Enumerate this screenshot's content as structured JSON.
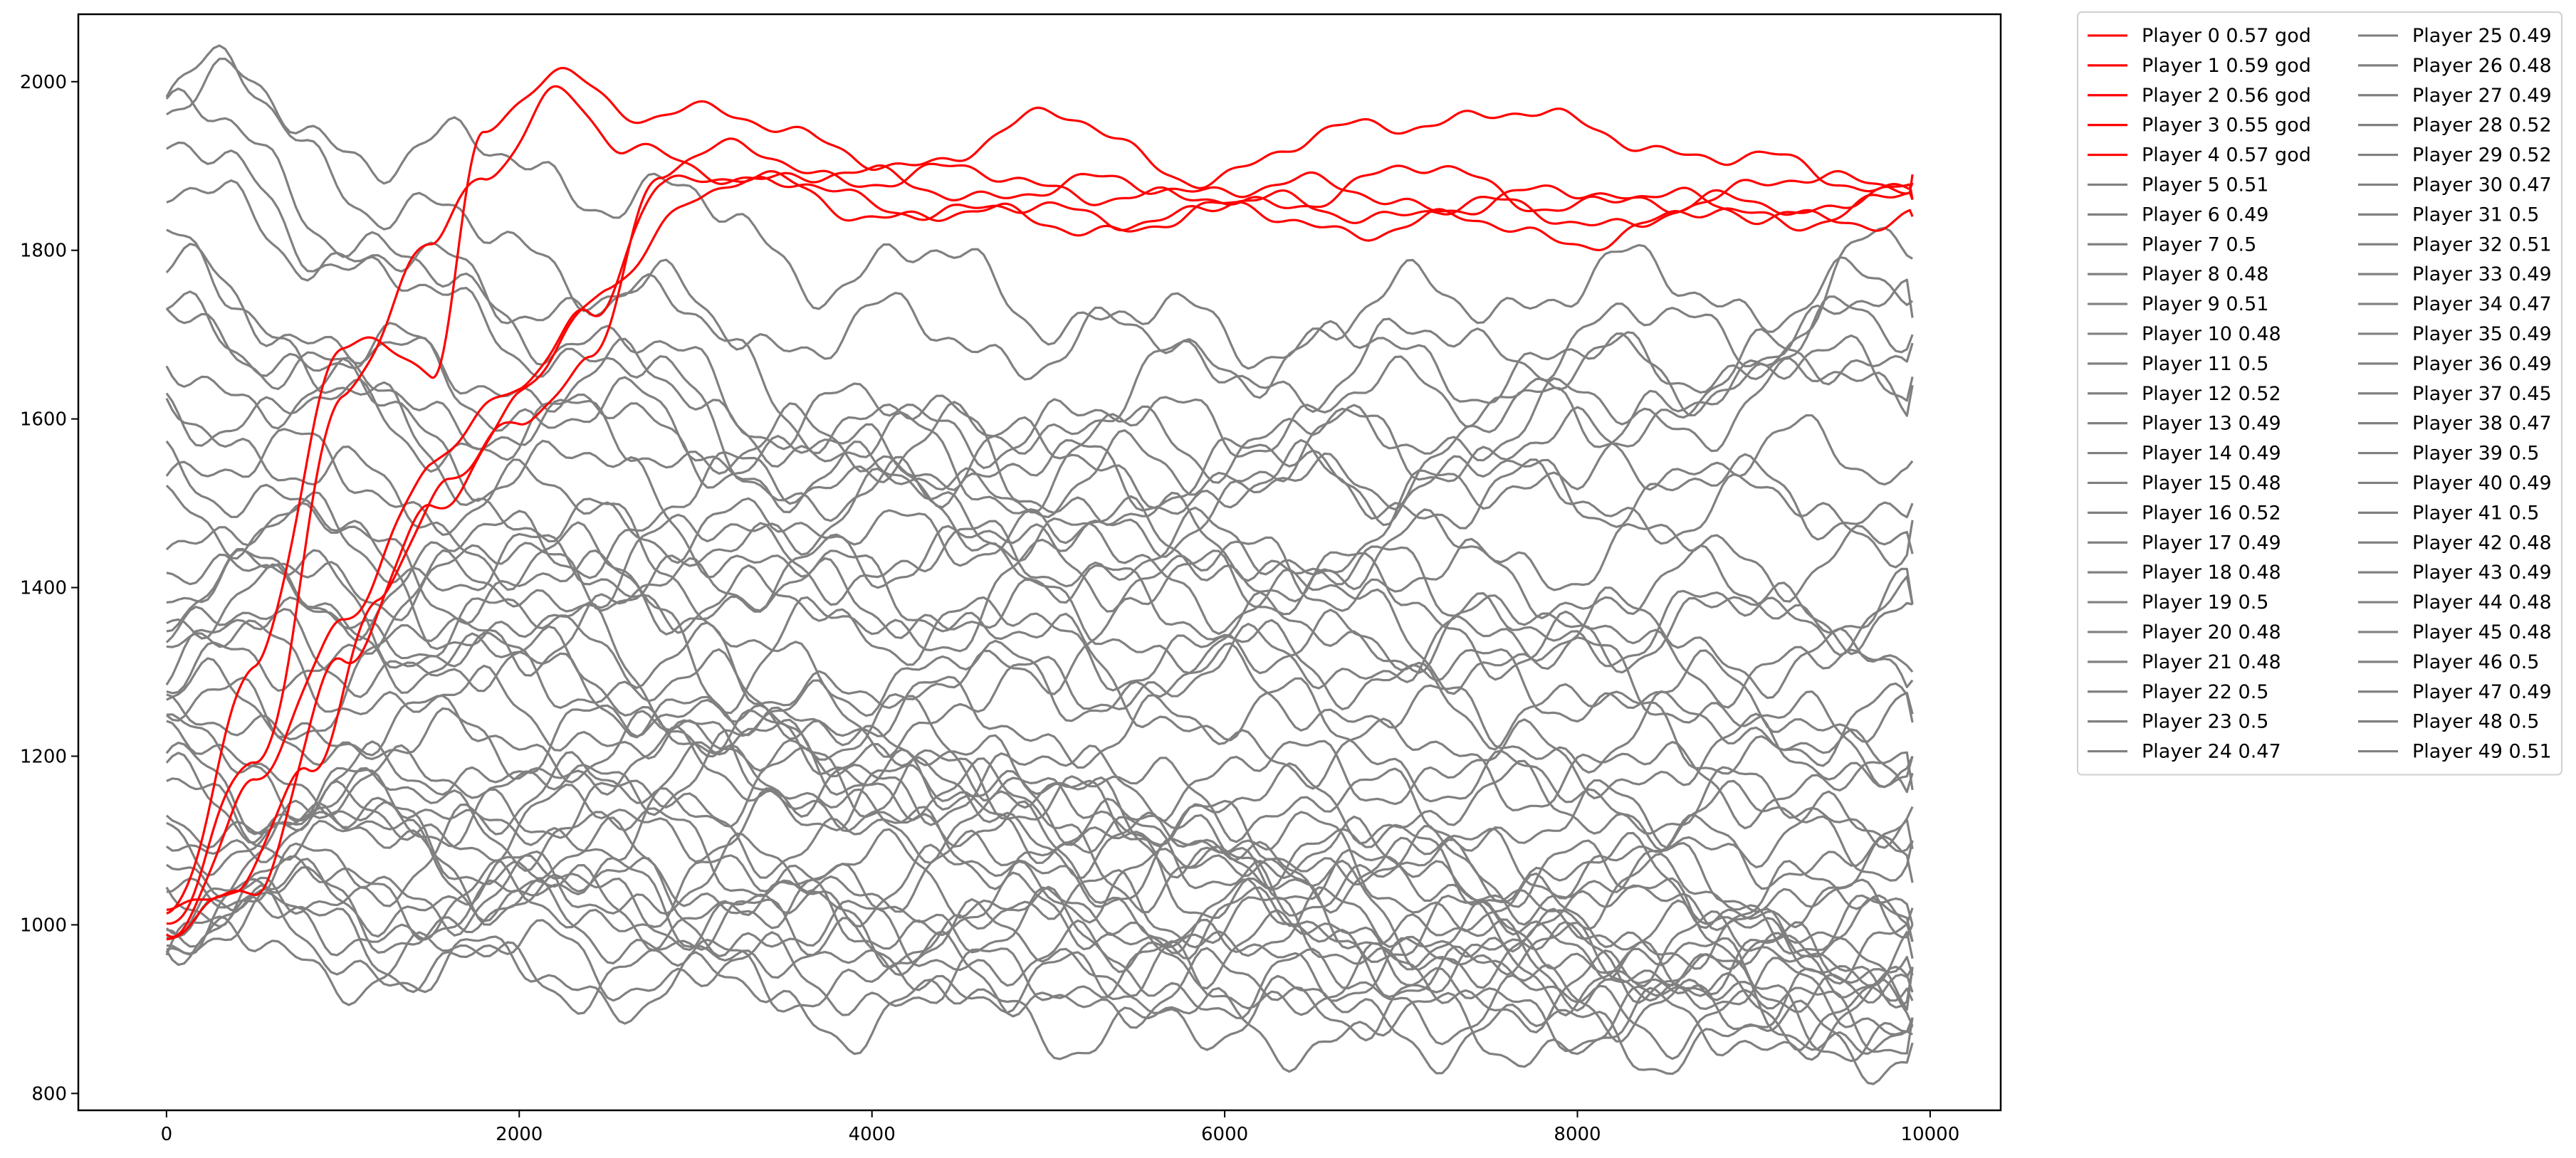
{
  "chart_data": {
    "type": "line",
    "title": "",
    "xlabel": "",
    "ylabel": "",
    "xlim": [
      -500,
      10400
    ],
    "ylim": [
      780,
      2080
    ],
    "x_ticks": [
      0,
      2000,
      4000,
      6000,
      8000,
      10000
    ],
    "y_ticks": [
      800,
      1000,
      1200,
      1400,
      1600,
      1800,
      2000
    ],
    "grid": false,
    "legend_position": "outside-right",
    "legend_columns": 2,
    "colors": {
      "god": "#ff0000",
      "normal": "#808080",
      "axes": "#000000"
    },
    "series": [
      {
        "name": "Player 0 0.57 god",
        "color": "#ff0000",
        "god": true,
        "x": [
          0,
          500,
          1000,
          1500,
          1800,
          2200,
          2600,
          3000,
          4000,
          5000,
          6000,
          7000,
          8000,
          9000,
          9900
        ],
        "y": [
          990,
          1200,
          1620,
          1800,
          1900,
          1990,
          1910,
          1900,
          1880,
          1870,
          1880,
          1860,
          1860,
          1870,
          1890
        ]
      },
      {
        "name": "Player 1 0.59 god",
        "color": "#ff0000",
        "god": true,
        "x": [
          0,
          500,
          1000,
          1500,
          1800,
          2200,
          2600,
          3000,
          4000,
          5000,
          6000,
          7000,
          8000,
          9000,
          9900
        ],
        "y": [
          1000,
          1320,
          1680,
          1660,
          1950,
          2010,
          1950,
          1980,
          1900,
          1950,
          1890,
          1960,
          1950,
          1900,
          1880
        ]
      },
      {
        "name": "Player 2 0.56 god",
        "color": "#ff0000",
        "god": true,
        "x": [
          0,
          500,
          1000,
          1500,
          2000,
          2500,
          3000,
          3500,
          4000,
          5000,
          6000,
          7000,
          8000,
          9000,
          9900
        ],
        "y": [
          1030,
          1050,
          1300,
          1500,
          1620,
          1750,
          1880,
          1870,
          1860,
          1840,
          1850,
          1850,
          1840,
          1850,
          1840
        ]
      },
      {
        "name": "Player 3 0.55 god",
        "color": "#ff0000",
        "god": true,
        "x": [
          0,
          500,
          1000,
          1500,
          2000,
          2400,
          2800,
          3200,
          4000,
          5000,
          6000,
          7000,
          8000,
          9000,
          9900
        ],
        "y": [
          1000,
          1160,
          1350,
          1560,
          1630,
          1720,
          1890,
          1880,
          1850,
          1830,
          1840,
          1830,
          1820,
          1840,
          1860
        ]
      },
      {
        "name": "Player 4 0.57 god",
        "color": "#ff0000",
        "god": true,
        "x": [
          0,
          400,
          800,
          1200,
          1600,
          2000,
          2400,
          2800,
          3200,
          4000,
          5000,
          6000,
          7000,
          8000,
          9000,
          9900
        ],
        "y": [
          990,
          1040,
          1170,
          1400,
          1530,
          1580,
          1680,
          1900,
          1910,
          1890,
          1880,
          1850,
          1890,
          1860,
          1850,
          1860
        ]
      },
      {
        "name": "Player 5 0.51",
        "color": "#808080",
        "god": false,
        "x": [
          0,
          2000,
          4000,
          6000,
          8000,
          9900
        ],
        "y": [
          1980,
          1900,
          1780,
          1700,
          1760,
          1740
        ]
      },
      {
        "name": "Player 6 0.49",
        "color": "#808080",
        "god": false,
        "x": [
          0,
          2000,
          4000,
          6000,
          8000,
          9900
        ],
        "y": [
          1950,
          1720,
          1560,
          1430,
          1330,
          1290
        ]
      },
      {
        "name": "Player 7 0.5",
        "color": "#808080",
        "god": false,
        "x": [
          0,
          2000,
          4000,
          6000,
          8000,
          9900
        ],
        "y": [
          1760,
          1620,
          1520,
          1400,
          1300,
          1200
        ]
      },
      {
        "name": "Player 8 0.48",
        "color": "#808080",
        "god": false,
        "x": [
          0,
          2000,
          4000,
          6000,
          8000,
          9900
        ],
        "y": [
          1600,
          1450,
          1200,
          1100,
          1000,
          950
        ]
      },
      {
        "name": "Player 9 0.51",
        "color": "#808080",
        "god": false,
        "x": [
          0,
          2000,
          4000,
          6000,
          8000,
          9900
        ],
        "y": [
          1500,
          1400,
          1380,
          1340,
          1350,
          1380
        ]
      },
      {
        "name": "Player 10 0.48",
        "color": "#808080",
        "god": false,
        "x": [
          0,
          2000,
          4000,
          6000,
          8000,
          9900
        ],
        "y": [
          1450,
          1300,
          1180,
          1050,
          950,
          870
        ]
      },
      {
        "name": "Player 11 0.5",
        "color": "#808080",
        "god": false,
        "x": [
          0,
          2000,
          4000,
          6000,
          8000,
          9900
        ],
        "y": [
          1380,
          1350,
          1300,
          1280,
          1220,
          1240
        ]
      },
      {
        "name": "Player 12 0.52",
        "color": "#808080",
        "god": false,
        "x": [
          0,
          2000,
          4000,
          6000,
          8000,
          9900
        ],
        "y": [
          1320,
          1450,
          1550,
          1650,
          1700,
          1720
        ]
      },
      {
        "name": "Player 13 0.49",
        "color": "#808080",
        "god": false,
        "x": [
          0,
          2000,
          4000,
          6000,
          8000,
          9900
        ],
        "y": [
          1250,
          1200,
          1150,
          1100,
          1060,
          1000
        ]
      },
      {
        "name": "Player 14 0.49",
        "color": "#808080",
        "god": false,
        "x": [
          0,
          2000,
          4000,
          6000,
          8000,
          9900
        ],
        "y": [
          1200,
          1150,
          1100,
          1080,
          1050,
          1020
        ]
      },
      {
        "name": "Player 15 0.48",
        "color": "#808080",
        "god": false,
        "x": [
          0,
          2000,
          4000,
          6000,
          8000,
          9900
        ],
        "y": [
          1150,
          1050,
          980,
          930,
          900,
          890
        ]
      },
      {
        "name": "Player 16 0.52",
        "color": "#808080",
        "god": false,
        "x": [
          0,
          2000,
          4000,
          6000,
          8000,
          9900
        ],
        "y": [
          1100,
          1200,
          1350,
          1500,
          1600,
          1690
        ]
      },
      {
        "name": "Player 17 0.49",
        "color": "#808080",
        "god": false,
        "x": [
          0,
          2000,
          4000,
          6000,
          8000,
          9900
        ],
        "y": [
          1060,
          1040,
          1000,
          990,
          970,
          960
        ]
      },
      {
        "name": "Player 18 0.48",
        "color": "#808080",
        "god": false,
        "x": [
          0,
          2000,
          4000,
          6000,
          8000,
          9900
        ],
        "y": [
          1010,
          960,
          930,
          920,
          900,
          910
        ]
      },
      {
        "name": "Player 19 0.5",
        "color": "#808080",
        "god": false,
        "x": [
          0,
          2000,
          4000,
          6000,
          8000,
          9900
        ],
        "y": [
          980,
          1020,
          1050,
          1060,
          1050,
          1050
        ]
      },
      {
        "name": "Player 20 0.48",
        "color": "#808080",
        "god": false,
        "x": [
          0,
          2000,
          4000,
          6000,
          8000,
          9900
        ],
        "y": [
          2000,
          1800,
          1600,
          1450,
          1350,
          1300
        ]
      },
      {
        "name": "Player 21 0.48",
        "color": "#808080",
        "god": false,
        "x": [
          0,
          2000,
          4000,
          6000,
          8000,
          9900
        ],
        "y": [
          1900,
          1700,
          1500,
          1350,
          1250,
          1180
        ]
      },
      {
        "name": "Player 22 0.5",
        "color": "#808080",
        "god": false,
        "x": [
          0,
          2000,
          4000,
          6000,
          8000,
          9900
        ],
        "y": [
          1700,
          1650,
          1600,
          1580,
          1560,
          1550
        ]
      },
      {
        "name": "Player 23 0.5",
        "color": "#808080",
        "god": false,
        "x": [
          0,
          2000,
          4000,
          6000,
          8000,
          9900
        ],
        "y": [
          1650,
          1600,
          1550,
          1520,
          1500,
          1480
        ]
      },
      {
        "name": "Player 24 0.47",
        "color": "#808080",
        "god": false,
        "x": [
          0,
          2000,
          4000,
          6000,
          8000,
          9900
        ],
        "y": [
          1550,
          1350,
          1150,
          1000,
          920,
          880
        ]
      },
      {
        "name": "Player 25 0.49",
        "color": "#808080",
        "god": false,
        "x": [
          0,
          2000,
          4000,
          6000,
          8000,
          9900
        ],
        "y": [
          1480,
          1420,
          1360,
          1320,
          1280,
          1250
        ]
      },
      {
        "name": "Player 26 0.48",
        "color": "#808080",
        "god": false,
        "x": [
          0,
          2000,
          4000,
          6000,
          8000,
          9900
        ],
        "y": [
          1420,
          1300,
          1200,
          1100,
          1040,
          1000
        ]
      },
      {
        "name": "Player 27 0.49",
        "color": "#808080",
        "god": false,
        "x": [
          0,
          2000,
          4000,
          6000,
          8000,
          9900
        ],
        "y": [
          1350,
          1300,
          1250,
          1220,
          1180,
          1160
        ]
      },
      {
        "name": "Player 28 0.52",
        "color": "#808080",
        "god": false,
        "x": [
          0,
          2000,
          4000,
          6000,
          8000,
          9900
        ],
        "y": [
          1280,
          1400,
          1500,
          1600,
          1650,
          1700
        ]
      },
      {
        "name": "Player 29 0.52",
        "color": "#808080",
        "god": false,
        "x": [
          0,
          2000,
          4000,
          6000,
          8000,
          9900
        ],
        "y": [
          1220,
          1350,
          1450,
          1550,
          1600,
          1640
        ]
      },
      {
        "name": "Player 30 0.47",
        "color": "#808080",
        "god": false,
        "x": [
          0,
          2000,
          4000,
          6000,
          8000,
          9900
        ],
        "y": [
          1180,
          1050,
          950,
          900,
          870,
          860
        ]
      },
      {
        "name": "Player 31 0.5",
        "color": "#808080",
        "god": false,
        "x": [
          0,
          2000,
          4000,
          6000,
          8000,
          9900
        ],
        "y": [
          1130,
          1150,
          1170,
          1180,
          1190,
          1200
        ]
      },
      {
        "name": "Player 32 0.51",
        "color": "#808080",
        "god": false,
        "x": [
          0,
          2000,
          4000,
          6000,
          8000,
          9900
        ],
        "y": [
          1080,
          1150,
          1250,
          1300,
          1350,
          1380
        ]
      },
      {
        "name": "Player 33 0.49",
        "color": "#808080",
        "god": false,
        "x": [
          0,
          2000,
          4000,
          6000,
          8000,
          9900
        ],
        "y": [
          1040,
          1000,
          980,
          960,
          950,
          940
        ]
      },
      {
        "name": "Player 34 0.47",
        "color": "#808080",
        "god": false,
        "x": [
          0,
          2000,
          4000,
          6000,
          8000,
          9900
        ],
        "y": [
          1000,
          940,
          900,
          880,
          870,
          880
        ]
      },
      {
        "name": "Player 35 0.49",
        "color": "#808080",
        "god": false,
        "x": [
          0,
          2000,
          4000,
          6000,
          8000,
          9900
        ],
        "y": [
          970,
          950,
          940,
          930,
          920,
          920
        ]
      },
      {
        "name": "Player 36 0.49",
        "color": "#808080",
        "god": false,
        "x": [
          0,
          2000,
          4000,
          6000,
          8000,
          9900
        ],
        "y": [
          1850,
          1750,
          1700,
          1680,
          1660,
          1650
        ]
      },
      {
        "name": "Player 37 0.45",
        "color": "#808080",
        "god": false,
        "x": [
          0,
          2000,
          4000,
          6000,
          8000,
          9900
        ],
        "y": [
          1780,
          1500,
          1250,
          1050,
          950,
          890
        ]
      },
      {
        "name": "Player 38 0.47",
        "color": "#808080",
        "god": false,
        "x": [
          0,
          2000,
          4000,
          6000,
          8000,
          9900
        ],
        "y": [
          1720,
          1550,
          1400,
          1250,
          1150,
          1100
        ]
      },
      {
        "name": "Player 39 0.5",
        "color": "#808080",
        "god": false,
        "x": [
          0,
          2000,
          4000,
          6000,
          8000,
          9900
        ],
        "y": [
          1620,
          1580,
          1560,
          1540,
          1520,
          1500
        ]
      },
      {
        "name": "Player 40 0.49",
        "color": "#808080",
        "god": false,
        "x": [
          0,
          2000,
          4000,
          6000,
          8000,
          9900
        ],
        "y": [
          1560,
          1500,
          1450,
          1420,
          1400,
          1380
        ]
      },
      {
        "name": "Player 41 0.5",
        "color": "#808080",
        "god": false,
        "x": [
          0,
          2000,
          4000,
          6000,
          8000,
          9900
        ],
        "y": [
          1400,
          1420,
          1430,
          1440,
          1440,
          1440
        ]
      },
      {
        "name": "Player 42 0.48",
        "color": "#808080",
        "god": false,
        "x": [
          0,
          2000,
          4000,
          6000,
          8000,
          9900
        ],
        "y": [
          1330,
          1250,
          1150,
          1080,
          1020,
          980
        ]
      },
      {
        "name": "Player 43 0.49",
        "color": "#808080",
        "god": false,
        "x": [
          0,
          2000,
          4000,
          6000,
          8000,
          9900
        ],
        "y": [
          1260,
          1220,
          1180,
          1150,
          1120,
          1100
        ]
      },
      {
        "name": "Player 44 0.48",
        "color": "#808080",
        "god": false,
        "x": [
          0,
          2000,
          4000,
          6000,
          8000,
          9900
        ],
        "y": [
          1200,
          1120,
          1060,
          1000,
          970,
          950
        ]
      },
      {
        "name": "Player 45 0.48",
        "color": "#808080",
        "god": false,
        "x": [
          0,
          2000,
          4000,
          6000,
          8000,
          9900
        ],
        "y": [
          1160,
          1080,
          1020,
          980,
          960,
          950
        ]
      },
      {
        "name": "Player 46 0.5",
        "color": "#808080",
        "god": false,
        "x": [
          0,
          2000,
          4000,
          6000,
          8000,
          9900
        ],
        "y": [
          1110,
          1120,
          1130,
          1140,
          1140,
          1140
        ]
      },
      {
        "name": "Player 47 0.49",
        "color": "#808080",
        "god": false,
        "x": [
          0,
          2000,
          4000,
          6000,
          8000,
          9900
        ],
        "y": [
          1050,
          1030,
          1010,
          1000,
          990,
          980
        ]
      },
      {
        "name": "Player 48 0.5",
        "color": "#808080",
        "god": false,
        "x": [
          0,
          2000,
          4000,
          6000,
          8000,
          9900
        ],
        "y": [
          1020,
          1040,
          1060,
          1070,
          1080,
          1090
        ]
      },
      {
        "name": "Player 49 0.51",
        "color": "#808080",
        "god": false,
        "x": [
          0,
          2000,
          4000,
          6000,
          8000,
          9900
        ],
        "y": [
          990,
          1100,
          1250,
          1400,
          1550,
          1790
        ]
      }
    ]
  }
}
